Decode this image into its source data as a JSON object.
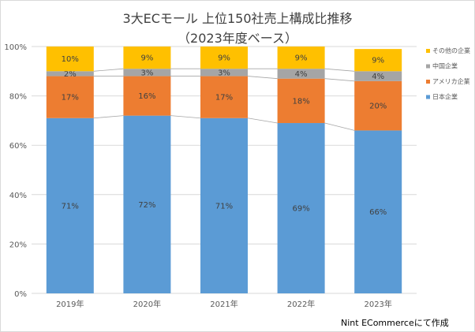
{
  "chart_data": {
    "type": "bar",
    "stacked": true,
    "title": "3大ECモール 上位150社売上構成比推移",
    "subtitle": "（2023年度ベース）",
    "categories": [
      "2019年",
      "2020年",
      "2021年",
      "2022年",
      "2023年"
    ],
    "series": [
      {
        "name": "日本企業",
        "color": "#5b9bd5",
        "values": [
          71,
          72,
          71,
          69,
          66
        ],
        "labels": [
          "71%",
          "72%",
          "71%",
          "69%",
          "66%"
        ]
      },
      {
        "name": "アメリカ企業",
        "color": "#ed7d31",
        "values": [
          17,
          16,
          17,
          18,
          20
        ],
        "labels": [
          "17%",
          "16%",
          "17%",
          "18%",
          "20%"
        ]
      },
      {
        "name": "中国企業",
        "color": "#a5a5a5",
        "values": [
          2,
          3,
          3,
          4,
          4
        ],
        "labels": [
          "2%",
          "3%",
          "3%",
          "4%",
          "4%"
        ]
      },
      {
        "name": "その他の企業",
        "color": "#ffc000",
        "values": [
          10,
          9,
          9,
          9,
          9
        ],
        "labels": [
          "10%",
          "9%",
          "9%",
          "9%",
          "9%"
        ]
      }
    ],
    "yticks": [
      "0%",
      "20%",
      "40%",
      "60%",
      "80%",
      "100%"
    ],
    "ylim": [
      0,
      100
    ],
    "grid": true,
    "legend_position": "right"
  },
  "footer": {
    "credit": "Nint ECommerceにて作成"
  }
}
